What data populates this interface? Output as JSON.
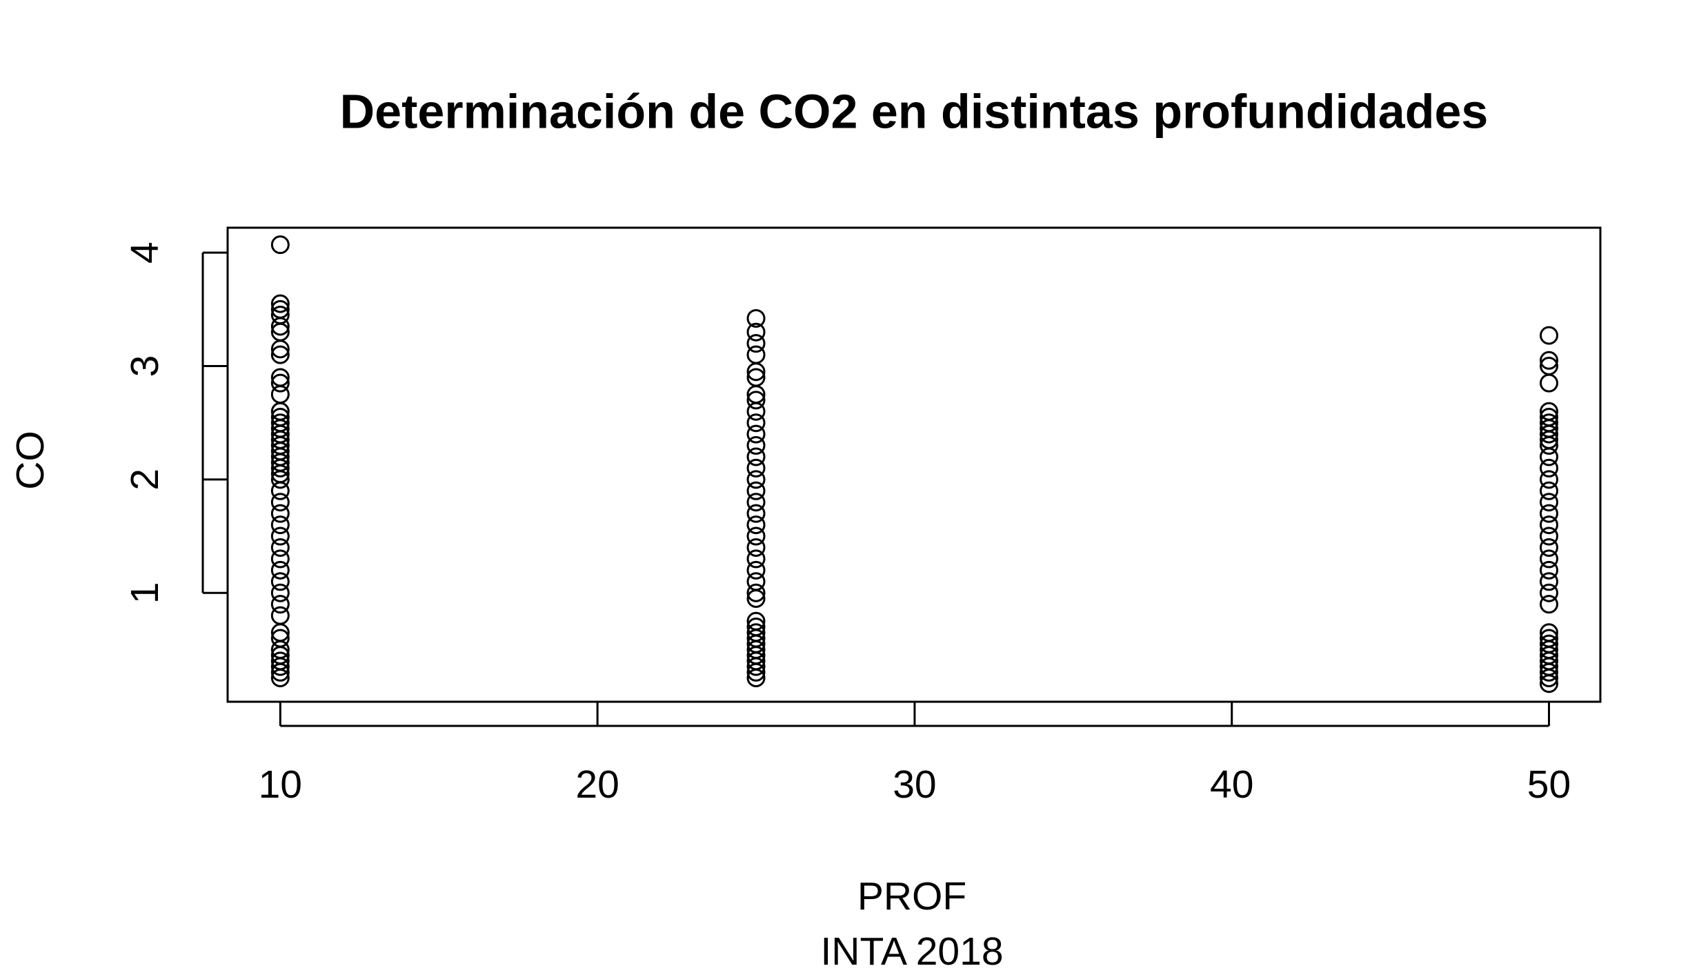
{
  "chart_data": {
    "type": "scatter",
    "title": "Determinación de CO2 en distintas profundidades",
    "xlabel": "PROF",
    "caption": "INTA 2018",
    "ylabel": "CO",
    "xlim": [
      8.34,
      51.62
    ],
    "ylim": [
      0.04,
      4.22
    ],
    "xticks": [
      10,
      20,
      30,
      40,
      50
    ],
    "yticks": [
      1,
      2,
      3,
      4
    ],
    "color": "#000000",
    "x": [
      10,
      10,
      10,
      10,
      10,
      10,
      10,
      10,
      10,
      10,
      10,
      10,
      10,
      10,
      10,
      10,
      10,
      10,
      10,
      10,
      10,
      10,
      10,
      10,
      10,
      10,
      10,
      10,
      10,
      10,
      10,
      10,
      10,
      10,
      10,
      10,
      10,
      10,
      10,
      10,
      10,
      10,
      10,
      10,
      25,
      25,
      25,
      25,
      25,
      25,
      25,
      25,
      25,
      25,
      25,
      25,
      25,
      25,
      25,
      25,
      25,
      25,
      25,
      25,
      25,
      25,
      25,
      25,
      25,
      25,
      25,
      25,
      25,
      25,
      25,
      25,
      25,
      25,
      25,
      25,
      25,
      50,
      50,
      50,
      50,
      50,
      50,
      50,
      50,
      50,
      50,
      50,
      50,
      50,
      50,
      50,
      50,
      50,
      50,
      50,
      50,
      50,
      50,
      50,
      50,
      50,
      50,
      50,
      50,
      50,
      50,
      50,
      50,
      50,
      50,
      50
    ],
    "values": [
      4.07,
      3.55,
      3.5,
      3.45,
      3.35,
      3.3,
      3.15,
      3.1,
      2.9,
      2.85,
      2.75,
      2.6,
      2.55,
      2.5,
      2.45,
      2.4,
      2.35,
      2.3,
      2.25,
      2.2,
      2.15,
      2.1,
      2.05,
      2.0,
      1.9,
      1.8,
      1.7,
      1.6,
      1.5,
      1.4,
      1.3,
      1.2,
      1.1,
      1.0,
      0.9,
      0.8,
      0.65,
      0.6,
      0.5,
      0.45,
      0.4,
      0.35,
      0.3,
      0.25,
      3.42,
      3.3,
      3.2,
      3.1,
      2.95,
      2.9,
      2.75,
      2.7,
      2.6,
      2.5,
      2.4,
      2.3,
      2.2,
      2.1,
      2.0,
      1.9,
      1.8,
      1.7,
      1.6,
      1.5,
      1.4,
      1.3,
      1.2,
      1.1,
      1.0,
      0.95,
      0.75,
      0.7,
      0.65,
      0.6,
      0.55,
      0.5,
      0.45,
      0.4,
      0.35,
      0.3,
      0.25,
      3.27,
      3.05,
      3.0,
      2.85,
      2.6,
      2.55,
      2.5,
      2.45,
      2.4,
      2.35,
      2.3,
      2.2,
      2.1,
      2.0,
      1.9,
      1.8,
      1.7,
      1.6,
      1.5,
      1.4,
      1.3,
      1.2,
      1.1,
      1.0,
      0.9,
      0.65,
      0.6,
      0.55,
      0.5,
      0.45,
      0.4,
      0.35,
      0.3,
      0.25,
      0.2
    ]
  }
}
